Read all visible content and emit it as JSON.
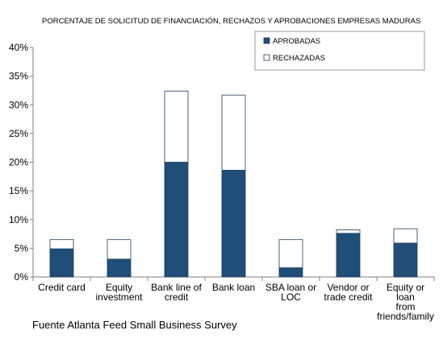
{
  "chart_data": {
    "type": "bar",
    "stacked": true,
    "title": "PORCENTAJE DE SOLICITUD DE FINANCIACIÓN, RECHAZOS Y APROBACIONES EMPRESAS MADURAS",
    "categories": [
      [
        "Credit card"
      ],
      [
        "Equity",
        "investment"
      ],
      [
        "Bank line of",
        "credit"
      ],
      [
        "Bank loan"
      ],
      [
        "SBA loan or",
        "LOC"
      ],
      [
        "Vendor or",
        "trade credit"
      ],
      [
        "Equity or",
        "loan",
        "from",
        "friends/family"
      ]
    ],
    "series": [
      {
        "name": "APROBADAS",
        "color": "#1F4E79",
        "values": [
          4.9,
          3.1,
          20.0,
          18.6,
          1.6,
          7.6,
          5.9
        ]
      },
      {
        "name": "RECHAZADAS",
        "color": "#FFFFFF",
        "values": [
          1.6,
          3.4,
          12.4,
          13.1,
          4.9,
          0.6,
          2.5
        ]
      }
    ],
    "ylim": [
      0,
      40
    ],
    "yticks": [
      "0%",
      "5%",
      "10%",
      "15%",
      "20%",
      "25%",
      "30%",
      "35%",
      "40%"
    ],
    "ytick_values": [
      0,
      5,
      10,
      15,
      20,
      25,
      30,
      35,
      40
    ],
    "legend_position": "top-right",
    "grid": false
  },
  "source_note": "Fuente Atlanta Feed Small Business Survey"
}
